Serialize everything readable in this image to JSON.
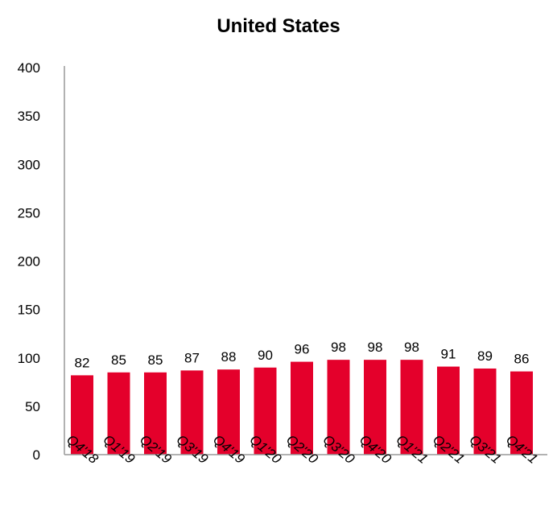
{
  "chart_data": {
    "type": "bar",
    "title": "United States",
    "xlabel": "",
    "ylabel": "",
    "categories": [
      "Q4'18",
      "Q1'19",
      "Q2'19",
      "Q3'19",
      "Q4'19",
      "Q1'20",
      "Q2'20",
      "Q3'20",
      "Q4'20",
      "Q1'21",
      "Q2'21",
      "Q3'21",
      "Q4'21"
    ],
    "values": [
      82,
      85,
      85,
      87,
      88,
      90,
      96,
      98,
      98,
      98,
      91,
      89,
      86
    ],
    "ylim": [
      0,
      400
    ],
    "yticks": [
      0,
      50,
      100,
      150,
      200,
      250,
      300,
      350,
      400
    ],
    "grid": false,
    "legend": "none",
    "bar_color": "#e4002b",
    "axis_color": "#999999"
  }
}
